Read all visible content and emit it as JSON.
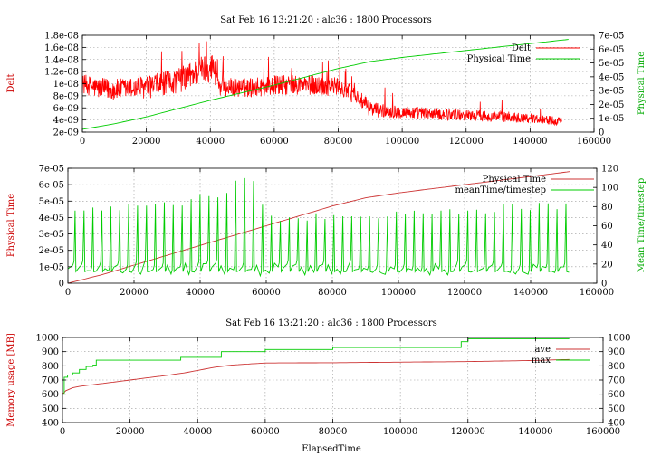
{
  "chart_data": [
    {
      "type": "line",
      "title": "Sat Feb 16 13:21:20 : alc36 : 1800 Processors",
      "xlabel": "",
      "ylabel": "Delt",
      "y2label": "Physical Time",
      "xlim": [
        0,
        160000
      ],
      "ylim": [
        2e-09,
        1.8e-08
      ],
      "y2lim": [
        0,
        7e-05
      ],
      "xticks": [
        "0",
        "20000",
        "40000",
        "60000",
        "80000",
        "100000",
        "120000",
        "140000",
        "160000"
      ],
      "yticks": [
        "2e-09",
        "4e-09",
        "6e-09",
        "8e-09",
        "1e-08",
        "1.2e-08",
        "1.4e-08",
        "1.6e-08",
        "1.8e-08"
      ],
      "y2ticks": [
        "0",
        "1e-05",
        "2e-05",
        "3e-05",
        "4e-05",
        "5e-05",
        "6e-05",
        "7e-05"
      ],
      "legend_position": "top-right",
      "grid": true,
      "series": [
        {
          "name": "Delt",
          "axis": "left",
          "color": "#ff0000",
          "noisy": true,
          "x": [
            0,
            5000,
            10000,
            20000,
            30000,
            38000,
            41000,
            43000,
            50000,
            60000,
            70000,
            80000,
            85000,
            90000,
            100000,
            110000,
            120000,
            130000,
            140000,
            150000
          ],
          "y": [
            1e-08,
            9.2e-09,
            9e-09,
            9.4e-09,
            1.05e-08,
            1.25e-08,
            1.28e-08,
            9.5e-09,
            9.3e-09,
            9.7e-09,
            9.8e-09,
            9.5e-09,
            8.2e-09,
            5.8e-09,
            5.3e-09,
            5e-09,
            4.8e-09,
            4.6e-09,
            4.3e-09,
            3.8e-09
          ],
          "amplitude": [
            1.6e-09,
            1.8e-09,
            1.8e-09,
            1.9e-09,
            2.1e-09,
            2.4e-09,
            2.4e-09,
            1.6e-09,
            1.6e-09,
            1.7e-09,
            1.7e-09,
            1.6e-09,
            1.5e-09,
            1.3e-09,
            1.1e-09,
            1e-09,
            9e-10,
            9e-10,
            8e-10,
            7e-10
          ]
        },
        {
          "name": "Physical Time",
          "axis": "right",
          "color": "#00cc00",
          "noisy": false,
          "x": [
            0,
            10000,
            20000,
            40000,
            60000,
            80000,
            90000,
            100000,
            120000,
            140000,
            152000
          ],
          "y": [
            2e-06,
            6e-06,
            1.1e-05,
            2.3e-05,
            3.4e-05,
            4.6e-05,
            5.1e-05,
            5.4e-05,
            5.9e-05,
            6.4e-05,
            6.7e-05
          ]
        }
      ]
    },
    {
      "type": "line",
      "title": "",
      "xlabel": "",
      "ylabel": "Physical Time",
      "y2label": "Mean Time/timestep",
      "xlim": [
        0,
        160000
      ],
      "ylim": [
        0,
        7e-05
      ],
      "y2lim": [
        0,
        120
      ],
      "xticks": [
        "0",
        "20000",
        "40000",
        "60000",
        "80000",
        "100000",
        "120000",
        "140000",
        "160000"
      ],
      "yticks": [
        "0",
        "1e-05",
        "2e-05",
        "3e-05",
        "4e-05",
        "5e-05",
        "6e-05",
        "7e-05"
      ],
      "y2ticks": [
        "0",
        "20",
        "40",
        "60",
        "80",
        "100",
        "120"
      ],
      "legend_position": "top-right",
      "grid": true,
      "series": [
        {
          "name": "Physical Time",
          "axis": "left",
          "color": "#cc3333",
          "x": [
            0,
            10000,
            20000,
            40000,
            60000,
            80000,
            90000,
            100000,
            120000,
            140000,
            152000
          ],
          "y": [
            0,
            5e-06,
            1.1e-05,
            2.3e-05,
            3.5e-05,
            4.7e-05,
            5.2e-05,
            5.5e-05,
            6e-05,
            6.5e-05,
            6.8e-05
          ]
        },
        {
          "name": "meanTime/timestep",
          "axis": "right",
          "color": "#00cc00",
          "spiky": true,
          "period": 2700,
          "start": 1500,
          "end": 151000,
          "base": 15,
          "peak_x": [
            0,
            20000,
            40000,
            55000,
            60000,
            80000,
            100000,
            120000,
            140000,
            151000
          ],
          "peak_y": [
            78,
            85,
            92,
            115,
            72,
            72,
            75,
            80,
            82,
            85
          ]
        }
      ]
    },
    {
      "type": "line",
      "title": "Sat Feb 16 13:21:20 : alc36 : 1800 Processors",
      "xlabel": "ElapsedTime",
      "ylabel": "Memory usage [MB]",
      "y2label": "",
      "xlim": [
        0,
        160000
      ],
      "ylim": [
        400,
        1000
      ],
      "y2lim": [
        400,
        1000
      ],
      "xticks": [
        "0",
        "20000",
        "40000",
        "60000",
        "80000",
        "100000",
        "120000",
        "140000",
        "160000"
      ],
      "yticks": [
        "400",
        "500",
        "600",
        "700",
        "800",
        "900",
        "1000"
      ],
      "y2ticks": [
        "400",
        "500",
        "600",
        "700",
        "800",
        "900",
        "1000"
      ],
      "legend_position": "top-right",
      "grid": true,
      "series": [
        {
          "name": "ave",
          "axis": "left",
          "color": "#cc3333",
          "x": [
            0,
            500,
            1000,
            3000,
            5000,
            10000,
            20000,
            30000,
            36000,
            45000,
            50000,
            60000,
            80000,
            100000,
            120000,
            140000,
            150000
          ],
          "y": [
            600,
            640,
            625,
            645,
            655,
            670,
            700,
            730,
            750,
            790,
            805,
            820,
            822,
            826,
            830,
            838,
            845
          ]
        },
        {
          "name": "max",
          "axis": "left",
          "color": "#00cc00",
          "step": true,
          "x": [
            0,
            500,
            1500,
            3000,
            5000,
            7000,
            9000,
            10000,
            35000,
            47000,
            60000,
            80000,
            118000,
            120000,
            150000
          ],
          "y": [
            600,
            720,
            735,
            750,
            775,
            795,
            805,
            840,
            860,
            900,
            915,
            930,
            970,
            990,
            990
          ]
        }
      ]
    }
  ]
}
